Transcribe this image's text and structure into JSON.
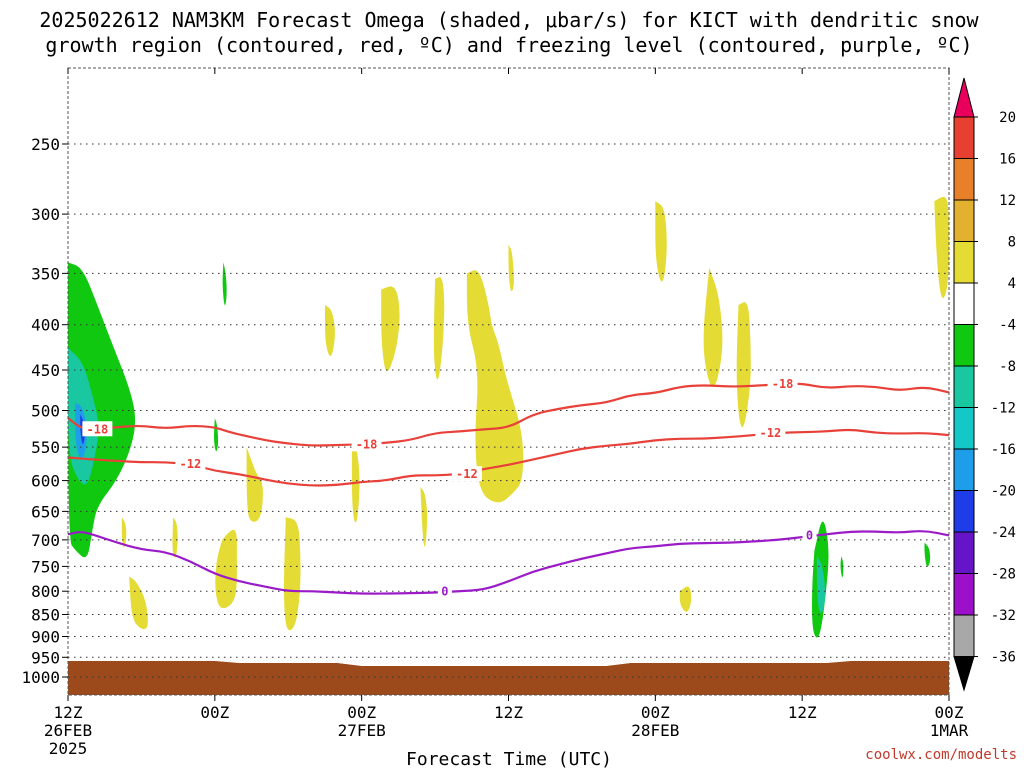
{
  "title_line1": "2025022612 NAM3KM Forecast Omega (shaded, μbar/s) for KICT with dendritic snow",
  "title_line2": "growth region (contoured, red, ºC) and freezing level (contoured, purple, ºC)",
  "credit": "coolwx.com/modelts",
  "colors": {
    "ground": "#9c4a1c",
    "dgz_contour": "#e8413a",
    "freezing_contour": "#9b1bc8",
    "up_weak": "#e4dc34",
    "down_weak": "#11c811",
    "down_mid": "#19c8a0",
    "down_strong": "#1e9ee8",
    "down_max": "#1e3ce8"
  },
  "chart_data": {
    "type": "time-height cross section",
    "xlabel": "Forecast Time (UTC)",
    "x_range_hours": [
      0,
      36
    ],
    "x_ticks": [
      {
        "hour": 0,
        "lines": [
          "12Z",
          "26FEB",
          "2025"
        ]
      },
      {
        "hour": 6,
        "lines": [
          "00Z"
        ]
      },
      {
        "hour": 12,
        "lines": [
          "00Z",
          "27FEB"
        ]
      },
      {
        "hour": 18,
        "lines": [
          "12Z"
        ]
      },
      {
        "hour": 24,
        "lines": [
          "00Z",
          "28FEB"
        ]
      },
      {
        "hour": 30,
        "lines": [
          "12Z"
        ]
      },
      {
        "hour": 36,
        "lines": [
          "00Z",
          "1MAR"
        ]
      }
    ],
    "y_scale": "log-pressure (hPa), inverted",
    "y_ticks": [
      250,
      300,
      350,
      400,
      450,
      500,
      550,
      600,
      650,
      700,
      750,
      800,
      850,
      900,
      950,
      1000
    ],
    "grid": "dotted horizontal at each pressure level, dashed frame",
    "colorbar": {
      "labels": [
        "20",
        "16",
        "12",
        "8",
        "4",
        "-4",
        "-8",
        "-12",
        "-16",
        "-20",
        "-24",
        "-28",
        "-32",
        "-36"
      ],
      "bins_top_to_bottom": [
        "#e8005c",
        "#e84030",
        "#e8802a",
        "#e4b030",
        "#e4dc34",
        "#ffffff",
        "#11c811",
        "#19c8a0",
        "#14c8c8",
        "#1e9ee8",
        "#1e3ce8",
        "#6614c8",
        "#9b10c8",
        "#a8a8a8",
        "#000000"
      ]
    },
    "series": [
      {
        "name": "-18",
        "contour_hours": [
          0,
          0.6,
          1.2,
          2,
          3,
          4,
          5,
          6,
          6.5,
          7,
          8,
          9,
          10,
          11,
          12,
          13,
          14,
          15,
          16,
          17,
          18,
          19,
          20,
          21,
          22,
          23,
          24,
          25,
          26,
          27,
          28,
          29,
          30,
          31,
          32,
          33,
          34,
          35,
          36
        ],
        "contour_hpa": [
          510,
          525,
          525,
          522,
          520,
          524,
          520,
          522,
          528,
          532,
          540,
          545,
          548,
          547,
          546,
          544,
          540,
          530,
          528,
          525,
          523,
          505,
          498,
          493,
          490,
          480,
          478,
          470,
          468,
          470,
          469,
          467,
          466,
          472,
          469,
          470,
          475,
          470,
          477
        ],
        "labels": [
          {
            "hour": 1.2,
            "hpa": 525
          },
          {
            "hour": 12.2,
            "hpa": 546
          },
          {
            "hour": 29.2,
            "hpa": 467
          }
        ]
      },
      {
        "name": "-12",
        "contour_hours": [
          0,
          1,
          2,
          3,
          4,
          5,
          6,
          7,
          8,
          9,
          10,
          11,
          12,
          13,
          14,
          15,
          16,
          17,
          18,
          19,
          20,
          21,
          22,
          23,
          24,
          25,
          26,
          27,
          28,
          29,
          30,
          31,
          32,
          33,
          34,
          35,
          36
        ],
        "contour_hpa": [
          565,
          568,
          570,
          572,
          572,
          575,
          585,
          590,
          598,
          605,
          608,
          607,
          602,
          600,
          592,
          592,
          590,
          582,
          576,
          568,
          560,
          552,
          548,
          545,
          540,
          538,
          538,
          536,
          533,
          530,
          529,
          528,
          525,
          530,
          531,
          530,
          533
        ],
        "labels": [
          {
            "hour": 5,
            "hpa": 575
          },
          {
            "hour": 16.3,
            "hpa": 590
          },
          {
            "hour": 28.7,
            "hpa": 530
          }
        ]
      },
      {
        "name": "0",
        "contour_hours": [
          0,
          0.5,
          1,
          2,
          3,
          4,
          5,
          6,
          7,
          8,
          9,
          10,
          11,
          12,
          13,
          14,
          15,
          16,
          17,
          18,
          19,
          20,
          21,
          22,
          23,
          24,
          25,
          26,
          27,
          28,
          29,
          30,
          31,
          32,
          33,
          34,
          35,
          36
        ],
        "contour_hpa": [
          690,
          685,
          690,
          705,
          718,
          722,
          740,
          765,
          780,
          790,
          800,
          800,
          803,
          805,
          805,
          804,
          803,
          800,
          797,
          780,
          760,
          747,
          735,
          725,
          715,
          712,
          707,
          706,
          705,
          703,
          700,
          695,
          690,
          685,
          685,
          687,
          683,
          692
        ],
        "labels": [
          {
            "hour": 15.4,
            "hpa": 801
          },
          {
            "hour": 30.3,
            "hpa": 692
          }
        ]
      }
    ],
    "shaded_regions": [
      {
        "fill": "down_weak",
        "hours": [
          0,
          0.6,
          1.2,
          1.8,
          2.5,
          2.8,
          2.6,
          2.0,
          1.2,
          1.0,
          0.8,
          0.3,
          0
        ],
        "hpa": [
          340,
          345,
          380,
          420,
          470,
          510,
          550,
          600,
          640,
          680,
          740,
          720,
          700
        ]
      },
      {
        "fill": "down_mid",
        "hours": [
          0,
          0.6,
          1.0,
          1.3,
          1.1,
          0.8,
          0.4,
          0
        ],
        "hpa": [
          425,
          440,
          480,
          520,
          565,
          610,
          600,
          560
        ]
      },
      {
        "fill": "down_strong",
        "hours": [
          0.3,
          0.6,
          0.8,
          0.7,
          0.5,
          0.3
        ],
        "hpa": [
          490,
          495,
          525,
          560,
          570,
          545
        ]
      },
      {
        "fill": "down_max",
        "hours": [
          0.5,
          0.65,
          0.7,
          0.6,
          0.5
        ],
        "hpa": [
          505,
          515,
          535,
          550,
          530
        ]
      },
      {
        "fill": "down_weak",
        "hours": [
          6.35,
          6.45,
          6.5,
          6.4,
          6.3
        ],
        "hpa": [
          340,
          350,
          370,
          385,
          360
        ]
      },
      {
        "fill": "down_weak",
        "hours": [
          6.0,
          6.1,
          6.15,
          6.05,
          5.95
        ],
        "hpa": [
          510,
          520,
          545,
          560,
          540
        ]
      },
      {
        "fill": "down_weak",
        "hours": [
          30.5,
          30.8,
          31.0,
          31.1,
          31.0,
          30.8,
          30.6,
          30.4,
          30.4
        ],
        "hpa": [
          720,
          660,
          680,
          730,
          790,
          880,
          910,
          880,
          790
        ]
      },
      {
        "fill": "down_mid",
        "hours": [
          30.6,
          30.8,
          30.95,
          30.9,
          30.7,
          30.6
        ],
        "hpa": [
          730,
          745,
          790,
          840,
          850,
          800
        ]
      },
      {
        "fill": "down_weak",
        "hours": [
          31.6,
          31.7,
          31.65,
          31.55
        ],
        "hpa": [
          730,
          745,
          780,
          750
        ]
      },
      {
        "fill": "down_weak",
        "hours": [
          35.0,
          35.2,
          35.25,
          35.1,
          35.0
        ],
        "hpa": [
          705,
          715,
          740,
          755,
          730
        ]
      },
      {
        "fill": "up_weak",
        "hours": [
          2.5,
          2.8,
          3.2,
          3.3,
          3.0,
          2.6
        ],
        "hpa": [
          770,
          780,
          820,
          880,
          885,
          860
        ]
      },
      {
        "fill": "up_weak",
        "hours": [
          2.2,
          2.35,
          2.4,
          2.3,
          2.2
        ],
        "hpa": [
          660,
          670,
          690,
          720,
          700
        ]
      },
      {
        "fill": "up_weak",
        "hours": [
          4.3,
          4.45,
          4.5,
          4.4,
          4.25
        ],
        "hpa": [
          660,
          670,
          700,
          740,
          720
        ]
      },
      {
        "fill": "up_weak",
        "hours": [
          6.3,
          6.7,
          6.9,
          6.9,
          6.9,
          6.7,
          6.2,
          6.0,
          6.05
        ],
        "hpa": [
          700,
          680,
          685,
          730,
          800,
          830,
          840,
          800,
          740
        ]
      },
      {
        "fill": "up_weak",
        "hours": [
          7.3,
          7.5,
          7.7,
          8.0,
          7.9,
          7.4,
          7.3
        ],
        "hpa": [
          550,
          570,
          590,
          605,
          665,
          670,
          630
        ]
      },
      {
        "fill": "up_weak",
        "hours": [
          8.9,
          9.4,
          9.5,
          9.5,
          9.3,
          8.9,
          8.8
        ],
        "hpa": [
          660,
          665,
          720,
          800,
          880,
          890,
          800
        ]
      },
      {
        "fill": "up_weak",
        "hours": [
          10.5,
          10.8,
          10.95,
          10.75,
          10.5
        ],
        "hpa": [
          380,
          385,
          410,
          440,
          420
        ]
      },
      {
        "fill": "up_weak",
        "hours": [
          12.8,
          13.4,
          13.6,
          13.4,
          13.0,
          12.8
        ],
        "hpa": [
          365,
          360,
          390,
          430,
          460,
          420
        ]
      },
      {
        "fill": "up_weak",
        "hours": [
          11.6,
          11.8,
          11.95,
          11.8,
          11.6
        ],
        "hpa": [
          540,
          550,
          600,
          680,
          650
        ]
      },
      {
        "fill": "up_weak",
        "hours": [
          14.4,
          14.6,
          14.7,
          14.6,
          14.5
        ],
        "hpa": [
          610,
          620,
          660,
          720,
          700
        ]
      },
      {
        "fill": "up_weak",
        "hours": [
          15.0,
          15.3,
          15.4,
          15.3,
          15.1,
          14.95,
          14.95
        ],
        "hpa": [
          355,
          352,
          380,
          430,
          470,
          440,
          400
        ]
      },
      {
        "fill": "up_weak",
        "hours": [
          16.3,
          16.8,
          17.2,
          17.3,
          17.6,
          17.9,
          18.6,
          18.6,
          18.2,
          17.6,
          16.8,
          16.6,
          16.8,
          16.3
        ],
        "hpa": [
          350,
          345,
          380,
          400,
          420,
          460,
          530,
          600,
          620,
          640,
          620,
          540,
          450,
          400
        ]
      },
      {
        "fill": "up_weak",
        "hours": [
          18.0,
          18.15,
          18.25,
          18.1,
          18.0
        ],
        "hpa": [
          325,
          330,
          360,
          370,
          350
        ]
      },
      {
        "fill": "up_weak",
        "hours": [
          24.0,
          24.4,
          24.5,
          24.3,
          24.0
        ],
        "hpa": [
          290,
          295,
          330,
          365,
          340
        ]
      },
      {
        "fill": "up_weak",
        "hours": [
          26.2,
          26.6,
          26.8,
          26.5,
          26.2,
          25.9
        ],
        "hpa": [
          345,
          370,
          420,
          470,
          470,
          420
        ]
      },
      {
        "fill": "up_weak",
        "hours": [
          27.4,
          27.8,
          27.9,
          27.9,
          27.6,
          27.4,
          27.3
        ],
        "hpa": [
          380,
          375,
          420,
          470,
          530,
          510,
          450
        ]
      },
      {
        "fill": "up_weak",
        "hours": [
          25.0,
          25.4,
          25.5,
          25.3,
          25.0
        ],
        "hpa": [
          800,
          785,
          820,
          850,
          830
        ]
      },
      {
        "fill": "up_weak",
        "hours": [
          35.4,
          35.9,
          36.0,
          36.0,
          35.7,
          35.5
        ],
        "hpa": [
          290,
          285,
          300,
          360,
          380,
          340
        ]
      }
    ]
  }
}
